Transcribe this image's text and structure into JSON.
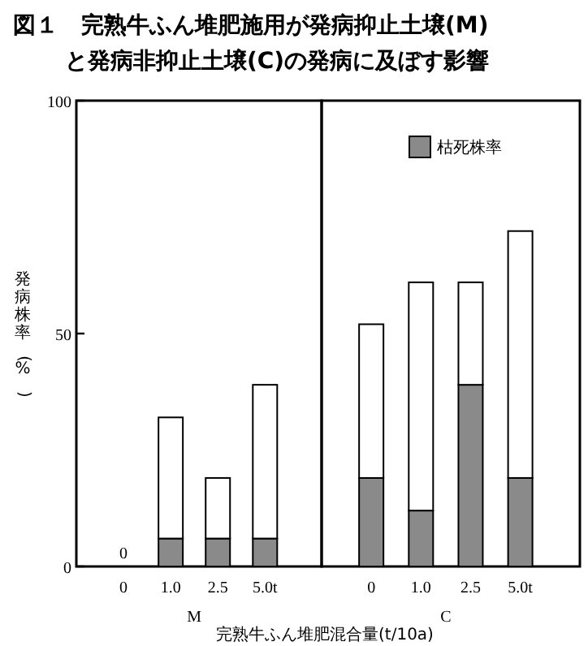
{
  "chart_data": [
    {
      "type": "bar",
      "title": "図１　完熟牛ふん堆肥施用が発病抑止土壌(M)と発病非抑止土壌(C)の発病に及ぼす影響",
      "ylabel": "発病株率(%)",
      "xlabel": "M",
      "categories": [
        "0",
        "1.0",
        "2.5",
        "5.0t"
      ],
      "stacked": true,
      "ylim": [
        0,
        100
      ],
      "yticks": [
        0,
        50,
        100
      ],
      "legend": false,
      "series": [
        {
          "color": "#8a8a8a",
          "values": [
            0,
            6,
            6,
            6
          ],
          "value_labels": [
            "0",
            null,
            null,
            null
          ]
        },
        {
          "color": "#ffffff",
          "values": [
            0,
            26,
            13,
            33
          ]
        }
      ]
    },
    {
      "type": "bar",
      "xlabel": "C",
      "categories": [
        "0",
        "1.0",
        "2.5",
        "5.0t"
      ],
      "stacked": true,
      "ylim": [
        0,
        100
      ],
      "tick_labels": "x",
      "legend": "top right",
      "annotations": [
        "完熟牛ふん堆肥混合量(t/10a)"
      ],
      "series": [
        {
          "name": "枯死株率",
          "color": "#8a8a8a",
          "values": [
            19,
            12,
            39,
            19
          ]
        },
        {
          "color": "#ffffff",
          "values": [
            33,
            49,
            22,
            53
          ]
        }
      ]
    }
  ]
}
